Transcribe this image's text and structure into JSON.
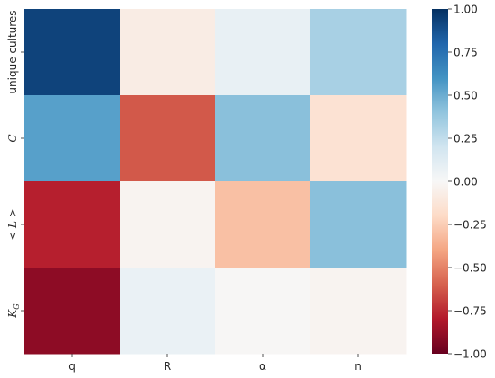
{
  "chart_data": {
    "type": "heatmap",
    "x_labels": [
      "q",
      "R",
      "α",
      "n"
    ],
    "y_labels": [
      {
        "main": "unique cultures",
        "sub": "",
        "italic": false
      },
      {
        "main": "C",
        "sub": "",
        "italic": true
      },
      {
        "main": "< L >",
        "sub": "",
        "italic": true
      },
      {
        "main": "K",
        "sub": "G",
        "italic": true
      }
    ],
    "values": [
      [
        0.93,
        -0.08,
        0.08,
        0.33
      ],
      [
        0.55,
        -0.62,
        0.42,
        -0.15
      ],
      [
        -0.78,
        -0.03,
        -0.3,
        0.42
      ],
      [
        -0.9,
        0.07,
        -0.01,
        -0.03
      ]
    ],
    "vmin": -1.0,
    "vmax": 1.0,
    "colormap": "RdBu",
    "colorbar": {
      "ticks": [
        1.0,
        0.75,
        0.5,
        0.25,
        0.0,
        -0.25,
        -0.5,
        -0.75,
        -1.0
      ],
      "tick_labels": [
        "1.00",
        "0.75",
        "0.50",
        "0.25",
        "0.00",
        "−0.25",
        "−0.50",
        "−0.75",
        "−1.00"
      ]
    },
    "title": "",
    "xlabel": "",
    "ylabel": ""
  }
}
